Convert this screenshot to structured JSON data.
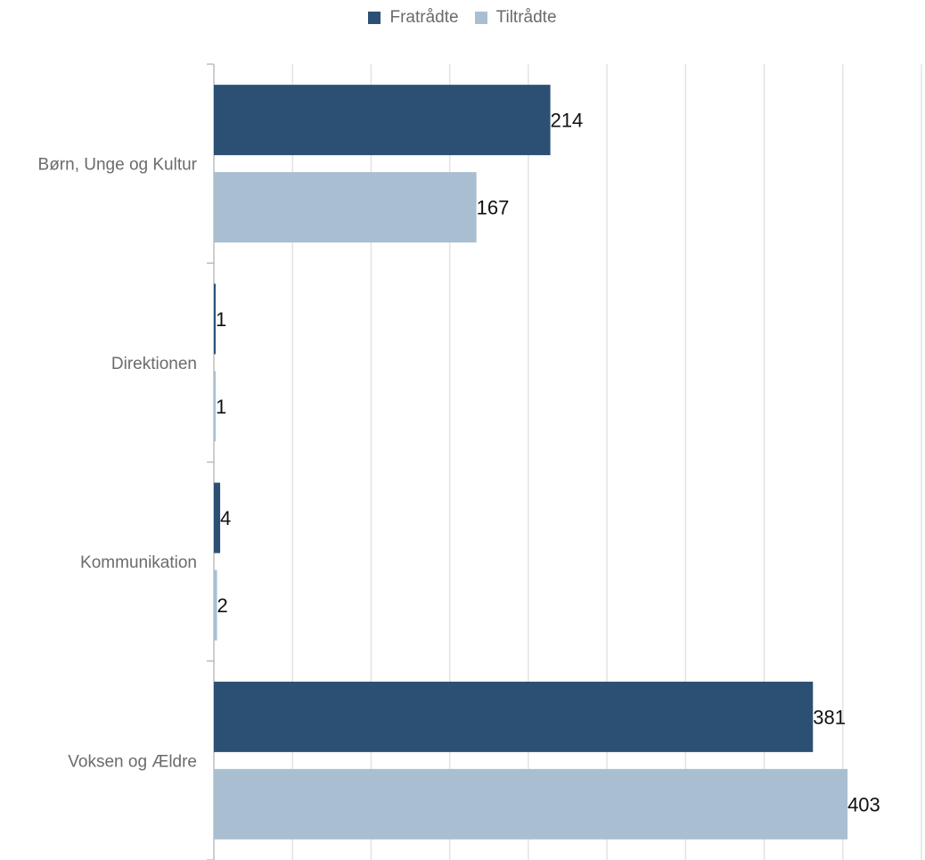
{
  "chart_data": {
    "type": "bar",
    "orientation": "horizontal",
    "categories": [
      "Børn, Unge og Kultur",
      "Direktionen",
      "Kommunikation",
      "Voksen og Ældre"
    ],
    "series": [
      {
        "name": "Fratrådte",
        "color": "#2c5074",
        "values": [
          214,
          1,
          4,
          381
        ]
      },
      {
        "name": "Tiltrådte",
        "color": "#a9bfd1",
        "values": [
          167,
          1,
          2,
          403
        ]
      }
    ],
    "title": "",
    "xlabel": "",
    "ylabel": "",
    "xlim": [
      0,
      450
    ],
    "grid": true,
    "legend_position": "top-center",
    "data_labels": true
  }
}
